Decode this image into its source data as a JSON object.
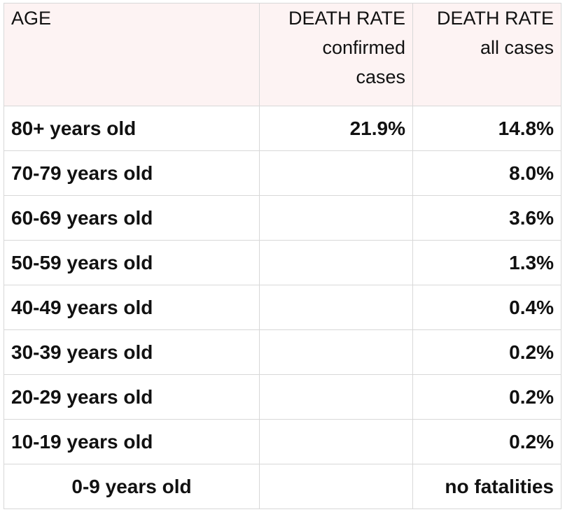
{
  "headers": {
    "age": "AGE",
    "confirmed": [
      "DEATH RATE",
      "confirmed",
      "cases"
    ],
    "all": [
      "DEATH RATE",
      "all cases"
    ]
  },
  "rows": [
    {
      "age": "80+ years old",
      "confirmed": "21.9%",
      "all": "14.8%"
    },
    {
      "age": "70-79 years old",
      "confirmed": "",
      "all": "8.0%"
    },
    {
      "age": "60-69 years old",
      "confirmed": "",
      "all": "3.6%"
    },
    {
      "age": "50-59 years old",
      "confirmed": "",
      "all": "1.3%"
    },
    {
      "age": "40-49 years old",
      "confirmed": "",
      "all": "0.4%"
    },
    {
      "age": "30-39 years old",
      "confirmed": "",
      "all": "0.2%"
    },
    {
      "age": "20-29 years old",
      "confirmed": "",
      "all": "0.2%"
    },
    {
      "age": "10-19 years old",
      "confirmed": "",
      "all": "0.2%"
    },
    {
      "age": "0-9 years old",
      "confirmed": "",
      "all": "no fatalities"
    }
  ]
}
